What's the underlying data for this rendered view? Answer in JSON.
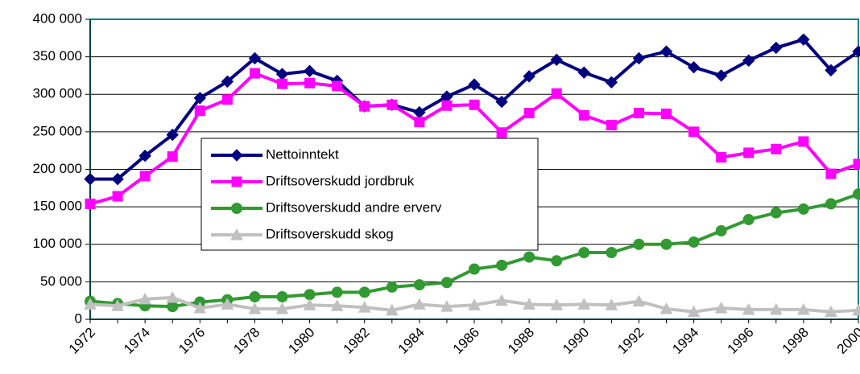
{
  "chart_data": {
    "type": "line",
    "categories": [
      "1972",
      null,
      "1974",
      null,
      "1976",
      null,
      "1978",
      null,
      "1980",
      null,
      "1982",
      null,
      "1984",
      null,
      "1986",
      null,
      "1988",
      null,
      "1990",
      null,
      "1992",
      null,
      "1994",
      null,
      "1996",
      null,
      "1998",
      null,
      "2000"
    ],
    "series": [
      {
        "name": "Nettoinntekt",
        "color": "#000080",
        "marker": "diamond",
        "values": [
          187000,
          187000,
          218000,
          246000,
          295000,
          317000,
          348000,
          327000,
          331000,
          318000,
          284000,
          286000,
          276000,
          297000,
          313000,
          290000,
          324000,
          346000,
          329000,
          316000,
          348000,
          357000,
          336000,
          325000,
          345000,
          362000,
          373000,
          332000,
          357000
        ]
      },
      {
        "name": "Driftsoverskudd jordbruk",
        "color": "#ff00ff",
        "marker": "square",
        "values": [
          154000,
          164000,
          191000,
          217000,
          278000,
          293000,
          328000,
          314000,
          315000,
          311000,
          284000,
          286000,
          263000,
          285000,
          286000,
          249000,
          275000,
          301000,
          272000,
          259000,
          275000,
          274000,
          250000,
          216000,
          222000,
          227000,
          237000,
          194000,
          207000
        ]
      },
      {
        "name": "Driftsoverskudd andre erverv",
        "color": "#339933",
        "marker": "circle",
        "values": [
          24000,
          21000,
          18000,
          17000,
          23000,
          26000,
          30000,
          30000,
          33000,
          36000,
          36000,
          43000,
          46000,
          49000,
          67000,
          72000,
          83000,
          78000,
          89000,
          89000,
          100000,
          100000,
          103000,
          118000,
          133000,
          142000,
          147000,
          154000,
          167000
        ]
      },
      {
        "name": "Driftsoverskudd skog",
        "color": "#c0c0c0",
        "marker": "triangle",
        "values": [
          20000,
          18000,
          27000,
          29000,
          15000,
          20000,
          14000,
          14000,
          19000,
          18000,
          16000,
          12000,
          20000,
          17000,
          19000,
          25000,
          20000,
          19000,
          20000,
          19000,
          24000,
          14000,
          10000,
          15000,
          13000,
          13000,
          13000,
          10000,
          12000
        ]
      }
    ],
    "ylim": [
      0,
      400000
    ],
    "yticks": [
      0,
      {
        "value": 50000,
        "label": "50 000"
      },
      {
        "value": 100000,
        "label": "100 000"
      },
      {
        "value": 150000,
        "label": "150 000"
      },
      {
        "value": 200000,
        "label": "200 000"
      },
      {
        "value": 250000,
        "label": "250 000"
      },
      {
        "value": 300000,
        "label": "300 000"
      },
      {
        "value": 350000,
        "label": "350 000"
      },
      {
        "value": 400000,
        "label": "400 000"
      }
    ],
    "grid": true,
    "legend": "center"
  }
}
